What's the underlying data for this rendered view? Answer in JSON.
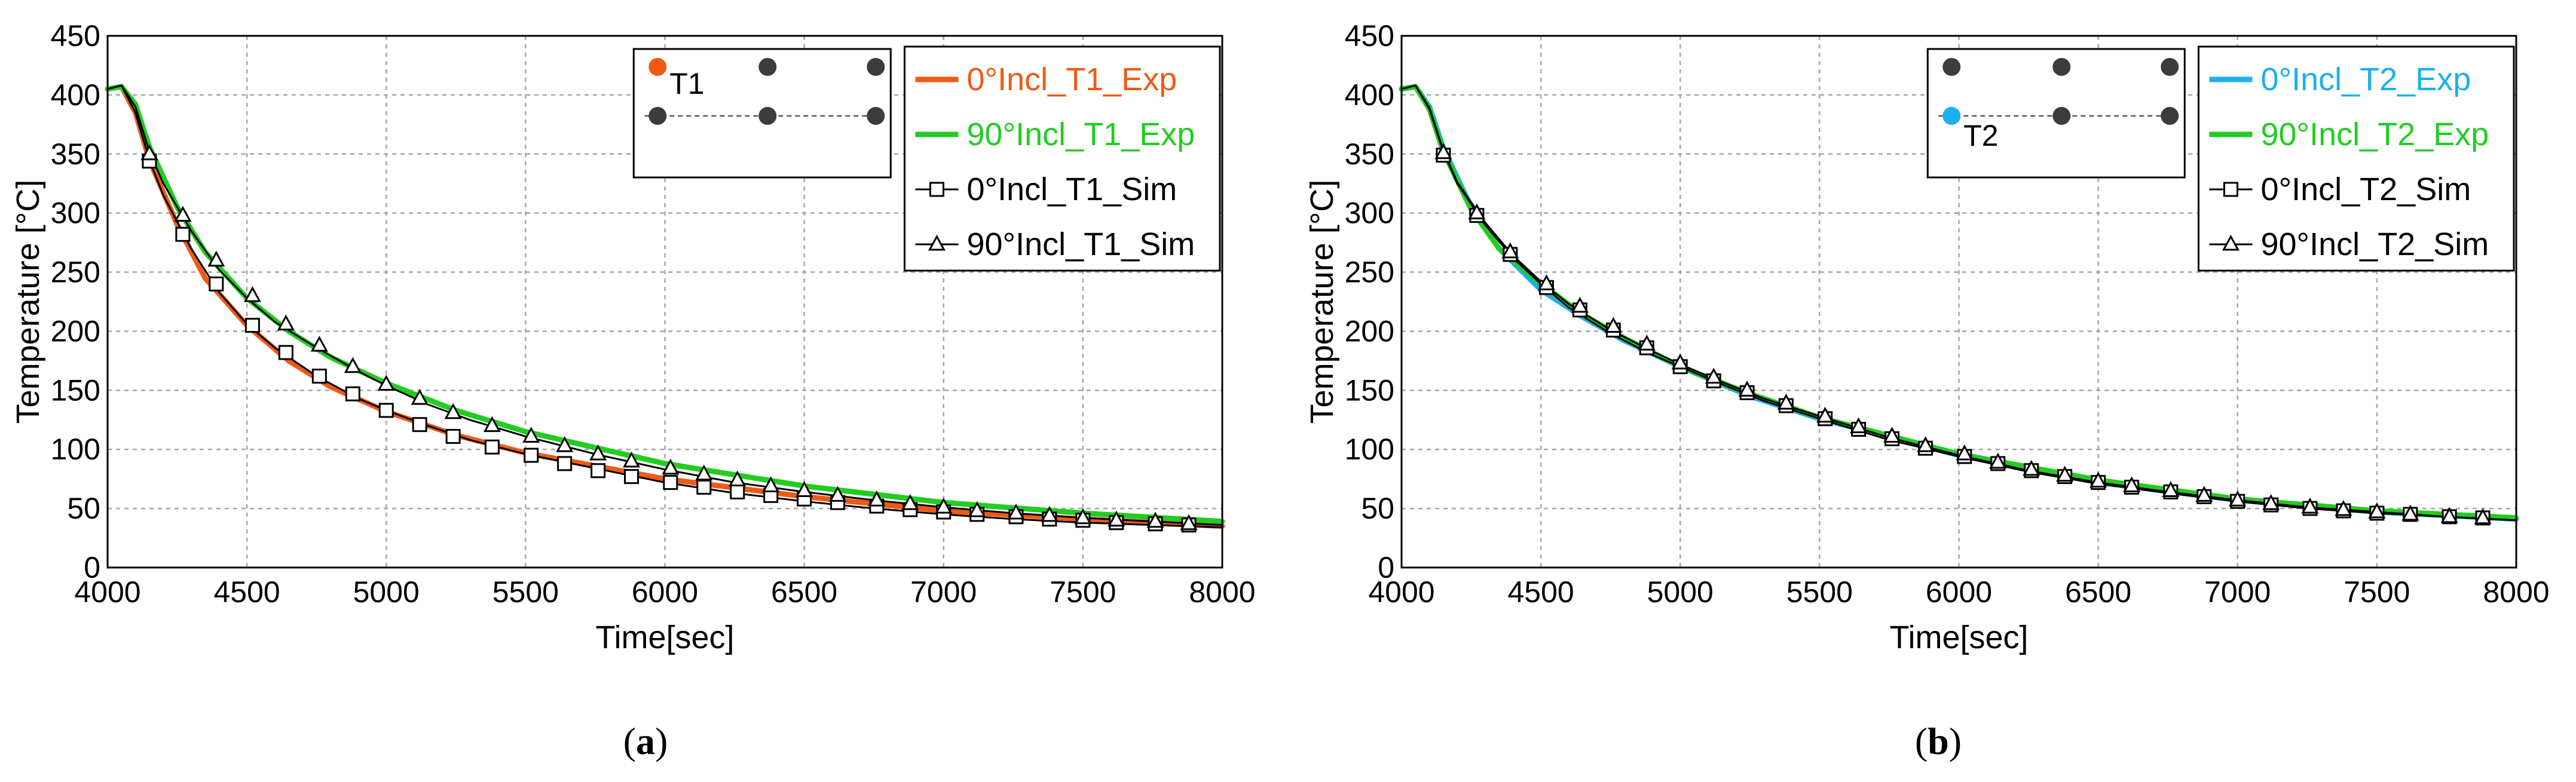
{
  "colors": {
    "t1_exp_0": "#f05a14",
    "t2_exp_0": "#1ab0ec",
    "exp_90": "#22cc22",
    "sim": "#000000",
    "sensor_dot": "#3c3c3c",
    "grid": "#a6a6a6"
  },
  "chart_data": [
    {
      "id": "a",
      "type": "line",
      "caption": "(a)",
      "caption_letter": "a",
      "xlabel": "Time[sec]",
      "ylabel": "Temperature [°C]",
      "xlim": [
        4000,
        8000
      ],
      "ylim": [
        0,
        450
      ],
      "xticks": [
        4000,
        4500,
        5000,
        5500,
        6000,
        6500,
        7000,
        7500,
        8000
      ],
      "yticks": [
        0,
        50,
        100,
        150,
        200,
        250,
        300,
        350,
        400,
        450
      ],
      "grid": true,
      "legend_position": "top-right",
      "inset": {
        "label": "T1",
        "highlight": "top-left",
        "highlight_color": "#f05a14"
      },
      "series": [
        {
          "name": "0°Incl_T1_Exp",
          "color": "#f05a14",
          "style": "line",
          "x": [
            4000,
            4050,
            4100,
            4150,
            4250,
            4350,
            4500,
            4650,
            4800,
            5000,
            5250,
            5500,
            6000,
            6500,
            7000,
            7500,
            8000
          ],
          "y": [
            405,
            407,
            385,
            345,
            290,
            245,
            205,
            175,
            153,
            132,
            112,
            97,
            75,
            60,
            48,
            41,
            35
          ]
        },
        {
          "name": "90°Incl_T1_Exp",
          "color": "#22cc22",
          "style": "line",
          "x": [
            4000,
            4050,
            4100,
            4150,
            4250,
            4350,
            4500,
            4650,
            4800,
            5000,
            5250,
            5500,
            6000,
            6500,
            7000,
            7500,
            8000
          ],
          "y": [
            405,
            407,
            392,
            356,
            305,
            267,
            228,
            200,
            178,
            156,
            133,
            115,
            88,
            69,
            55,
            46,
            39
          ]
        },
        {
          "name": "0°Incl_T1_Sim",
          "color": "#000000",
          "style": "line-square",
          "x": [
            4000,
            4050,
            4100,
            4150,
            4200,
            4300,
            4400,
            4500,
            4600,
            4750,
            4900,
            5000,
            5150,
            5300,
            5500,
            5750,
            6000,
            6250,
            6500,
            6750,
            7000,
            7250,
            7500,
            7750,
            8000
          ],
          "y": [
            405,
            408,
            385,
            345,
            315,
            270,
            233,
            206,
            186,
            162,
            143,
            133,
            120,
            108,
            96,
            84,
            72,
            63,
            56,
            50,
            45,
            41,
            38,
            36,
            34
          ],
          "marker_x": [
            4150,
            4270,
            4390,
            4520,
            4640,
            4760,
            4880,
            5000,
            5120,
            5240,
            5380,
            5520,
            5640,
            5760,
            5880,
            6020,
            6140,
            6260,
            6380,
            6500,
            6620,
            6760,
            6880,
            7000,
            7120,
            7260,
            7380,
            7500,
            7620,
            7760,
            7880
          ],
          "marker_y": [
            344,
            282,
            240,
            205,
            182,
            162,
            147,
            133,
            121,
            111,
            102,
            95,
            88,
            82,
            77,
            72,
            68,
            64,
            61,
            58,
            55,
            52,
            49,
            47,
            45,
            43,
            41,
            40,
            38,
            37,
            36
          ]
        },
        {
          "name": "90°Incl_T1_Sim",
          "color": "#000000",
          "style": "line-triangle",
          "x": [
            4000,
            4050,
            4100,
            4150,
            4200,
            4300,
            4400,
            4500,
            4600,
            4750,
            4900,
            5000,
            5150,
            5300,
            5500,
            5750,
            6000,
            6250,
            6500,
            6750,
            7000,
            7250,
            7500,
            7750,
            8000
          ],
          "y": [
            405,
            408,
            390,
            352,
            325,
            285,
            252,
            228,
            208,
            186,
            166,
            154,
            138,
            125,
            111,
            96,
            83,
            72,
            64,
            57,
            51,
            46,
            42,
            39,
            36
          ],
          "marker_x": [
            4150,
            4270,
            4390,
            4520,
            4640,
            4760,
            4880,
            5000,
            5120,
            5240,
            5380,
            5520,
            5640,
            5760,
            5880,
            6020,
            6140,
            6260,
            6380,
            6500,
            6620,
            6760,
            6880,
            7000,
            7120,
            7260,
            7380,
            7500,
            7620,
            7760,
            7880
          ],
          "marker_y": [
            350,
            298,
            260,
            230,
            206,
            188,
            170,
            155,
            143,
            131,
            120,
            111,
            103,
            96,
            90,
            84,
            79,
            74,
            69,
            65,
            61,
            57,
            54,
            51,
            48,
            46,
            44,
            42,
            40,
            39,
            37
          ]
        }
      ]
    },
    {
      "id": "b",
      "type": "line",
      "caption": "(b)",
      "caption_letter": "b",
      "xlabel": "Time[sec]",
      "ylabel": "Temperature [°C]",
      "xlim": [
        4000,
        8000
      ],
      "ylim": [
        0,
        450
      ],
      "xticks": [
        4000,
        4500,
        5000,
        5500,
        6000,
        6500,
        7000,
        7500,
        8000
      ],
      "yticks": [
        0,
        50,
        100,
        150,
        200,
        250,
        300,
        350,
        400,
        450
      ],
      "grid": true,
      "legend_position": "top-right",
      "inset": {
        "label": "T2",
        "highlight": "middle-left",
        "highlight_color": "#1ab0ec"
      },
      "series": [
        {
          "name": "0°Incl_T2_Exp",
          "color": "#1ab0ec",
          "style": "line",
          "x": [
            4000,
            4050,
            4100,
            4150,
            4250,
            4350,
            4500,
            4650,
            4800,
            5000,
            5250,
            5500,
            6000,
            6500,
            7000,
            7500,
            8000
          ],
          "y": [
            405,
            407,
            390,
            355,
            305,
            270,
            235,
            212,
            192,
            170,
            145,
            126,
            95,
            72,
            57,
            47,
            41
          ]
        },
        {
          "name": "90°Incl_T2_Exp",
          "color": "#22cc22",
          "style": "line",
          "x": [
            4000,
            4050,
            4100,
            4150,
            4250,
            4350,
            4500,
            4650,
            4800,
            5000,
            5250,
            5500,
            6000,
            6500,
            7000,
            7500,
            8000
          ],
          "y": [
            405,
            407,
            388,
            352,
            303,
            270,
            240,
            214,
            194,
            170,
            147,
            127,
            96,
            74,
            58,
            48,
            42
          ]
        },
        {
          "name": "0°Incl_T2_Sim",
          "color": "#000000",
          "style": "line-square",
          "x": [
            4000,
            4050,
            4100,
            4150,
            4200,
            4300,
            4400,
            4500,
            4600,
            4750,
            4900,
            5000,
            5150,
            5300,
            5500,
            5750,
            6000,
            6250,
            6500,
            6750,
            7000,
            7250,
            7500,
            7750,
            8000
          ],
          "y": [
            405,
            408,
            388,
            352,
            325,
            290,
            262,
            240,
            220,
            198,
            180,
            170,
            155,
            141,
            126,
            108,
            94,
            81,
            71,
            63,
            56,
            50,
            46,
            43,
            40
          ],
          "marker_x": [
            4150,
            4270,
            4390,
            4520,
            4640,
            4760,
            4880,
            5000,
            5120,
            5240,
            5380,
            5520,
            5640,
            5760,
            5880,
            6020,
            6140,
            6260,
            6380,
            6500,
            6620,
            6760,
            6880,
            7000,
            7120,
            7260,
            7380,
            7500,
            7620,
            7760,
            7880
          ],
          "marker_y": [
            349,
            298,
            265,
            237,
            218,
            201,
            186,
            170,
            158,
            148,
            137,
            126,
            117,
            109,
            101,
            94,
            88,
            82,
            77,
            72,
            68,
            64,
            60,
            56,
            53,
            50,
            48,
            46,
            45,
            43,
            42
          ]
        },
        {
          "name": "90°Incl_T2_Sim",
          "color": "#000000",
          "style": "line-triangle",
          "x": [
            4000,
            4050,
            4100,
            4150,
            4200,
            4300,
            4400,
            4500,
            4600,
            4750,
            4900,
            5000,
            5150,
            5300,
            5500,
            5750,
            6000,
            6250,
            6500,
            6750,
            7000,
            7250,
            7500,
            7750,
            8000
          ],
          "y": [
            405,
            408,
            389,
            353,
            326,
            292,
            264,
            242,
            223,
            201,
            183,
            172,
            157,
            143,
            128,
            110,
            95,
            82,
            72,
            64,
            57,
            51,
            47,
            43,
            40
          ],
          "marker_x": [
            4150,
            4270,
            4390,
            4520,
            4640,
            4760,
            4880,
            5000,
            5120,
            5240,
            5380,
            5520,
            5640,
            5760,
            5880,
            6020,
            6140,
            6260,
            6380,
            6500,
            6620,
            6760,
            6880,
            7000,
            7120,
            7260,
            7380,
            7500,
            7620,
            7760,
            7880
          ],
          "marker_y": [
            351,
            300,
            267,
            240,
            221,
            204,
            189,
            173,
            161,
            150,
            139,
            128,
            119,
            111,
            103,
            96,
            89,
            83,
            78,
            73,
            69,
            65,
            61,
            57,
            54,
            51,
            49,
            47,
            45,
            43,
            42
          ]
        }
      ]
    }
  ]
}
